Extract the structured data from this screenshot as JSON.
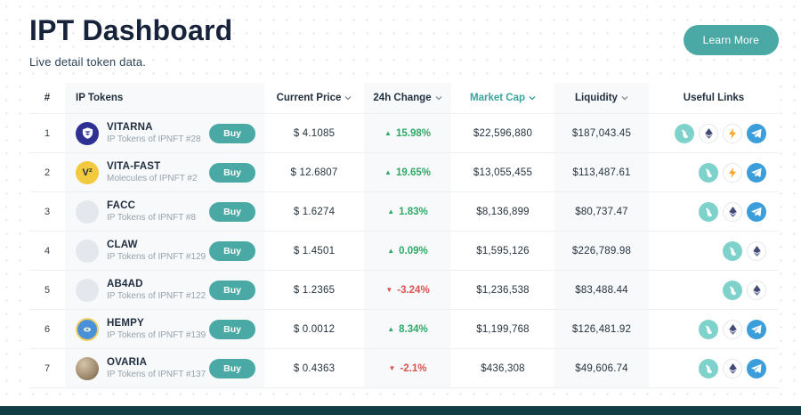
{
  "header": {
    "title": "IPT Dashboard",
    "subtitle": "Live detail token data.",
    "learn_more_label": "Learn More"
  },
  "colors": {
    "accent_teal": "#4aa9a5",
    "sorted_column_teal": "#3aa59b",
    "positive_green": "#2fa866",
    "negative_red": "#d9534f",
    "bottom_bar": "#113e45"
  },
  "table": {
    "buy_label": "Buy",
    "columns": [
      {
        "label": "#",
        "sortable": false
      },
      {
        "label": "IP Tokens",
        "sortable": false
      },
      {
        "label": "Current Price",
        "sortable": true
      },
      {
        "label": "24h Change",
        "sortable": true
      },
      {
        "label": "Market Cap",
        "sortable": true,
        "highlighted": true
      },
      {
        "label": "Liquidity",
        "sortable": true
      },
      {
        "label": "Useful Links",
        "sortable": false
      }
    ],
    "rows": [
      {
        "rank": "1",
        "name": "VITARNA",
        "subtitle": "IP Tokens of IPNFT #28",
        "icon_style": "vitarna",
        "price": "$ 4.1085",
        "change": "15.98%",
        "change_dir": "up",
        "market_cap": "$22,596,880",
        "liquidity": "$187,043.45",
        "links": [
          "uniswap",
          "ethereum",
          "lightning",
          "telegram"
        ]
      },
      {
        "rank": "2",
        "name": "VITA-FAST",
        "subtitle": "Molecules of IPNFT #2",
        "icon_style": "vitafast",
        "icon_text": "V²",
        "price": "$ 12.6807",
        "change": "19.65%",
        "change_dir": "up",
        "market_cap": "$13,055,455",
        "liquidity": "$113,487.61",
        "links": [
          "uniswap",
          "lightning",
          "telegram"
        ]
      },
      {
        "rank": "3",
        "name": "FACC",
        "subtitle": "IP Tokens of IPNFT #8",
        "icon_style": "plain",
        "price": "$ 1.6274",
        "change": "1.83%",
        "change_dir": "up",
        "market_cap": "$8,136,899",
        "liquidity": "$80,737.47",
        "links": [
          "uniswap",
          "ethereum",
          "telegram"
        ]
      },
      {
        "rank": "4",
        "name": "CLAW",
        "subtitle": "IP Tokens of IPNFT #129",
        "icon_style": "plain",
        "price": "$ 1.4501",
        "change": "0.09%",
        "change_dir": "up",
        "market_cap": "$1,595,126",
        "liquidity": "$226,789.98",
        "links": [
          "uniswap",
          "ethereum"
        ]
      },
      {
        "rank": "5",
        "name": "AB4AD",
        "subtitle": "IP Tokens of IPNFT #122",
        "icon_style": "plain",
        "price": "$ 1.2365",
        "change": "-3.24%",
        "change_dir": "down",
        "market_cap": "$1,236,538",
        "liquidity": "$83,488.44",
        "links": [
          "uniswap",
          "ethereum"
        ]
      },
      {
        "rank": "6",
        "name": "HEMPY",
        "subtitle": "IP Tokens of IPNFT #139",
        "icon_style": "hempy",
        "price": "$ 0.0012",
        "change": "8.34%",
        "change_dir": "up",
        "market_cap": "$1,199,768",
        "liquidity": "$126,481.92",
        "links": [
          "uniswap",
          "ethereum",
          "telegram"
        ]
      },
      {
        "rank": "7",
        "name": "OVARIA",
        "subtitle": "IP Tokens of IPNFT #137",
        "icon_style": "ovaria",
        "price": "$ 0.4363",
        "change": "-2.1%",
        "change_dir": "down",
        "market_cap": "$436,308",
        "liquidity": "$49,606.74",
        "links": [
          "uniswap",
          "ethereum",
          "telegram"
        ]
      }
    ]
  }
}
